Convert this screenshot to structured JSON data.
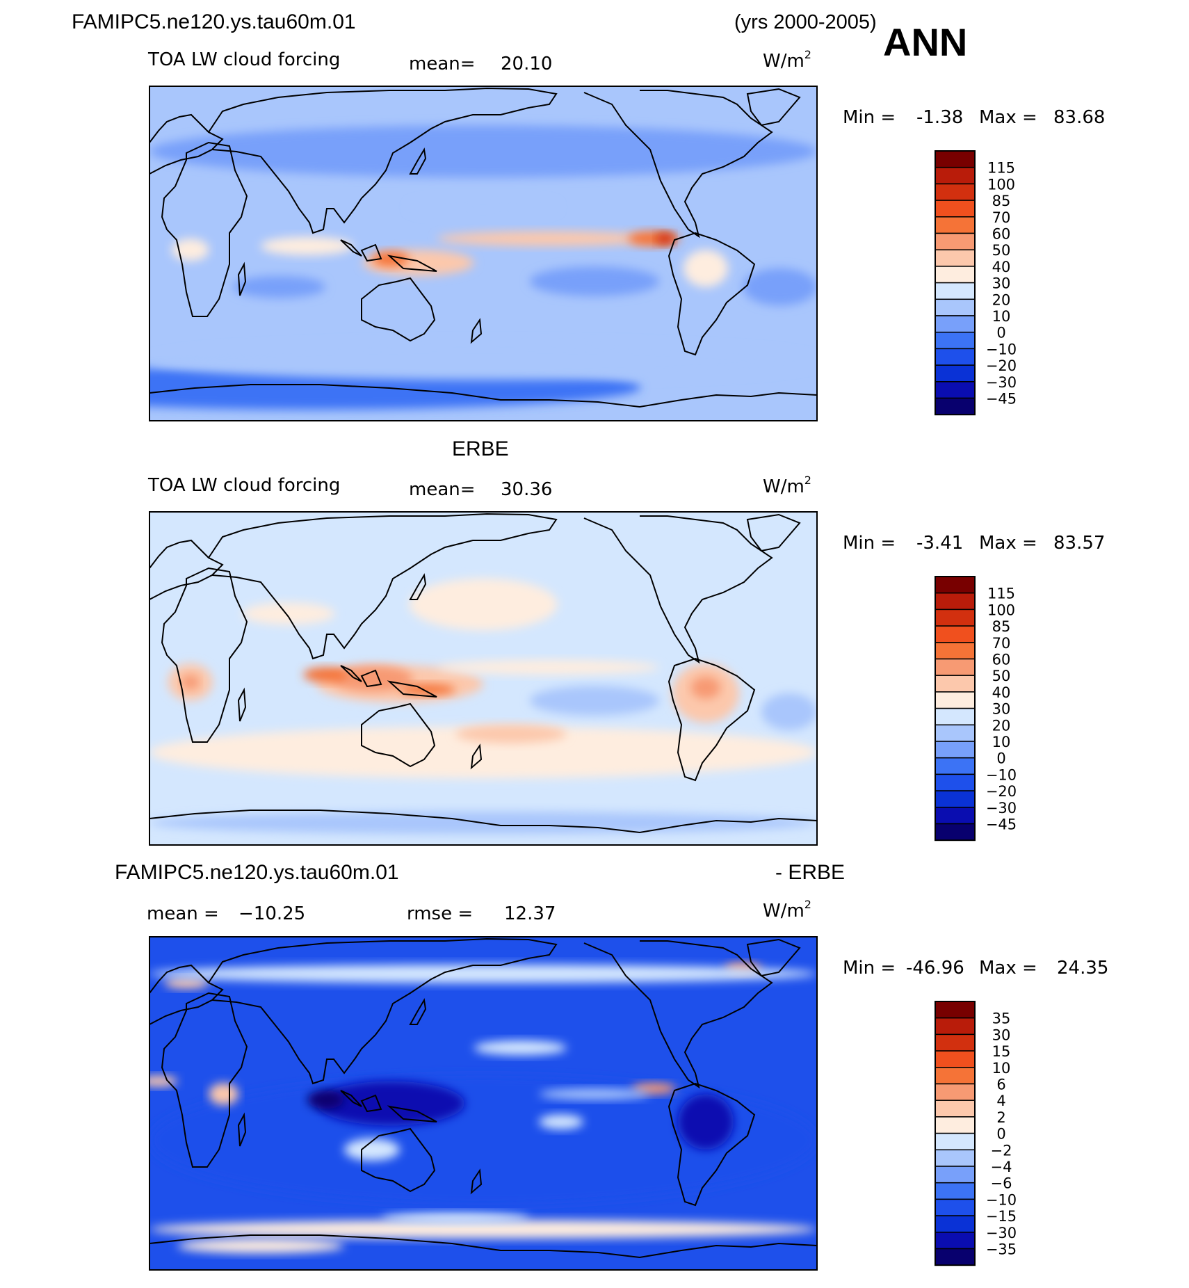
{
  "header": {
    "case_name": "FAMIPC5.ne120.ys.tau60m.01",
    "years": "(yrs 2000-2005)",
    "season": "ANN"
  },
  "colors": {
    "abs_scale": [
      "#08006E",
      "#0A0DB0",
      "#0A32D6",
      "#1E50EB",
      "#3C73F5",
      "#78A0FA",
      "#A9C6FC",
      "#D4E7FE",
      "#FEEDDF",
      "#FCC8AC",
      "#F79A73",
      "#F57337",
      "#F0501E",
      "#D2300F",
      "#B91C0A",
      "#780000"
    ],
    "diff_scale": [
      "#08006E",
      "#0A0DB0",
      "#0A32D6",
      "#1E50EB",
      "#3C73F5",
      "#78A0FA",
      "#A9C6FC",
      "#D4E7FE",
      "#FEEDDF",
      "#FCC8AC",
      "#F79A73",
      "#F57337",
      "#F0501E",
      "#D2300F",
      "#B91C0A",
      "#780000"
    ],
    "frame": "#000000",
    "coast": "#000000"
  },
  "chart_data": [
    {
      "type": "heatmap",
      "title": "FAMIPC5.ne120.ys.tau60m.01",
      "variable": "TOA LW cloud forcing",
      "units_base": "W/m",
      "units_exp": "2",
      "mean_label": "mean=",
      "mean": "20.10",
      "min_label": "Min =",
      "min": "-1.38",
      "max_label": "Max =",
      "max": "83.68",
      "colorbar_levels": [
        "115",
        "100",
        "85",
        "70",
        "60",
        "50",
        "40",
        "30",
        "20",
        "10",
        "0",
        "−10",
        "−20",
        "−30",
        "−45"
      ],
      "projection": "cylindrical equidistant, centered 180",
      "xlim": [
        0,
        360
      ],
      "ylim": [
        -90,
        90
      ],
      "features": [
        {
          "lon": 90,
          "lat": -72,
          "rx": 175,
          "ry": 12,
          "level": 4
        },
        {
          "lon": 180,
          "lat": -58,
          "rx": 180,
          "ry": 10,
          "level": 6
        },
        {
          "lon": 180,
          "lat": 55,
          "rx": 180,
          "ry": 14,
          "level": 5
        },
        {
          "lon": 215,
          "lat": 8,
          "rx": 60,
          "ry": 4,
          "level": 9
        },
        {
          "lon": 272,
          "lat": 8,
          "rx": 14,
          "ry": 4,
          "level": 11
        },
        {
          "lon": 278,
          "lat": 8,
          "rx": 5,
          "ry": 3,
          "level": 13
        },
        {
          "lon": 145,
          "lat": -5,
          "rx": 30,
          "ry": 7,
          "level": 9
        },
        {
          "lon": 130,
          "lat": -3,
          "rx": 10,
          "ry": 4,
          "level": 11
        },
        {
          "lon": 85,
          "lat": 4,
          "rx": 25,
          "ry": 5,
          "level": 8
        },
        {
          "lon": 22,
          "lat": 2,
          "rx": 10,
          "ry": 6,
          "level": 8
        },
        {
          "lon": 300,
          "lat": -8,
          "rx": 12,
          "ry": 10,
          "level": 8
        },
        {
          "lon": 240,
          "lat": -15,
          "rx": 35,
          "ry": 8,
          "level": 5
        },
        {
          "lon": 340,
          "lat": -18,
          "rx": 20,
          "ry": 10,
          "level": 5
        },
        {
          "lon": 70,
          "lat": -18,
          "rx": 25,
          "ry": 6,
          "level": 5
        },
        {
          "lon": 180,
          "lat": 25,
          "rx": 40,
          "ry": 5,
          "level": 6
        }
      ]
    },
    {
      "type": "heatmap",
      "title": "ERBE",
      "variable": "TOA LW cloud forcing",
      "units_base": "W/m",
      "units_exp": "2",
      "mean_label": "mean=",
      "mean": "30.36",
      "min_label": "Min =",
      "min": "-3.41",
      "max_label": "Max =",
      "max": "83.57",
      "colorbar_levels": [
        "115",
        "100",
        "85",
        "70",
        "60",
        "50",
        "40",
        "30",
        "20",
        "10",
        "0",
        "−10",
        "−20",
        "−30",
        "−45"
      ],
      "projection": "cylindrical equidistant, centered 180",
      "xlim": [
        0,
        360
      ],
      "ylim": [
        -90,
        90
      ],
      "features": [
        {
          "lon": 180,
          "lat": -40,
          "rx": 180,
          "ry": 14,
          "level": 8
        },
        {
          "lon": 180,
          "lat": -78,
          "rx": 180,
          "ry": 6,
          "level": 6
        },
        {
          "lon": 180,
          "lat": 40,
          "rx": 40,
          "ry": 14,
          "level": 8
        },
        {
          "lon": 135,
          "lat": -3,
          "rx": 45,
          "ry": 10,
          "level": 9
        },
        {
          "lon": 120,
          "lat": 0,
          "rx": 22,
          "ry": 7,
          "level": 10
        },
        {
          "lon": 95,
          "lat": 2,
          "rx": 12,
          "ry": 4,
          "level": 11
        },
        {
          "lon": 150,
          "lat": -6,
          "rx": 15,
          "ry": 3,
          "level": 11
        },
        {
          "lon": 22,
          "lat": -2,
          "rx": 12,
          "ry": 10,
          "level": 9
        },
        {
          "lon": 22,
          "lat": -2,
          "rx": 5,
          "ry": 4,
          "level": 10
        },
        {
          "lon": 300,
          "lat": -8,
          "rx": 18,
          "ry": 16,
          "level": 9
        },
        {
          "lon": 300,
          "lat": -5,
          "rx": 8,
          "ry": 6,
          "level": 10
        },
        {
          "lon": 215,
          "lat": 6,
          "rx": 60,
          "ry": 4,
          "level": 8
        },
        {
          "lon": 240,
          "lat": -12,
          "rx": 35,
          "ry": 8,
          "level": 6
        },
        {
          "lon": 345,
          "lat": -18,
          "rx": 15,
          "ry": 10,
          "level": 6
        },
        {
          "lon": 75,
          "lat": 35,
          "rx": 25,
          "ry": 6,
          "level": 8
        },
        {
          "lon": 195,
          "lat": -30,
          "rx": 30,
          "ry": 5,
          "level": 9
        }
      ]
    },
    {
      "type": "heatmap",
      "title": "FAMIPC5.ne120.ys.tau60m.01",
      "title_suffix": "- ERBE",
      "units_base": "W/m",
      "units_exp": "2",
      "mean_label": "mean = ",
      "mean": "−10.25",
      "rmse_label": "rmse = ",
      "rmse": "12.37",
      "min_label": "Min =",
      "min": "-46.96",
      "max_label": "Max =",
      "max": "24.35",
      "colorbar_levels": [
        "35",
        "30",
        "15",
        "10",
        "6",
        "4",
        "2",
        "0",
        "−2",
        "−4",
        "−6",
        "−10",
        "−15",
        "−30",
        "−35"
      ],
      "projection": "cylindrical equidistant, centered 180",
      "xlim": [
        0,
        360
      ],
      "ylim": [
        -90,
        90
      ],
      "features": [
        {
          "lon": 180,
          "lat": -20,
          "rx": 180,
          "ry": 35,
          "level": 3
        },
        {
          "lon": 130,
          "lat": 0,
          "rx": 40,
          "ry": 12,
          "level": 1
        },
        {
          "lon": 95,
          "lat": 2,
          "rx": 10,
          "ry": 5,
          "level": 0
        },
        {
          "lon": 300,
          "lat": -10,
          "rx": 15,
          "ry": 15,
          "level": 1
        },
        {
          "lon": 200,
          "lat": 30,
          "rx": 25,
          "ry": 4,
          "level": 7
        },
        {
          "lon": 222,
          "lat": -10,
          "rx": 12,
          "ry": 4,
          "level": 7
        },
        {
          "lon": 272,
          "lat": 8,
          "rx": 12,
          "ry": 3,
          "level": 10
        },
        {
          "lon": 40,
          "lat": 5,
          "rx": 8,
          "ry": 6,
          "level": 9
        },
        {
          "lon": 5,
          "lat": 12,
          "rx": 10,
          "ry": 3,
          "level": 9
        },
        {
          "lon": 180,
          "lat": -68,
          "rx": 180,
          "ry": 5,
          "level": 8
        },
        {
          "lon": 60,
          "lat": -77,
          "rx": 45,
          "ry": 4,
          "level": 8
        },
        {
          "lon": 165,
          "lat": -62,
          "rx": 40,
          "ry": 3,
          "level": 7
        },
        {
          "lon": 320,
          "lat": 73,
          "rx": 10,
          "ry": 3,
          "level": 10
        },
        {
          "lon": 20,
          "lat": 65,
          "rx": 12,
          "ry": 3,
          "level": 9
        },
        {
          "lon": 180,
          "lat": 70,
          "rx": 180,
          "ry": 5,
          "level": 7
        },
        {
          "lon": 120,
          "lat": -25,
          "rx": 15,
          "ry": 6,
          "level": 7
        },
        {
          "lon": 240,
          "lat": 5,
          "rx": 30,
          "ry": 3,
          "level": 6
        }
      ]
    }
  ]
}
